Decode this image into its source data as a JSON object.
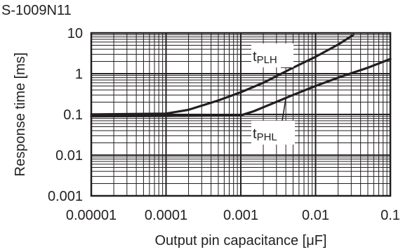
{
  "chart_data": {
    "type": "line",
    "title": "S-1009N11",
    "xlabel": "Output pin capacitance [μF]",
    "ylabel": "Response time [ms]",
    "xscale": "log",
    "yscale": "log",
    "xlim": [
      1e-05,
      0.1
    ],
    "ylim": [
      0.001,
      10
    ],
    "x_ticks": [
      "0.00001",
      "0.0001",
      "0.001",
      "0.01",
      "0.1"
    ],
    "y_ticks": [
      "0.001",
      "0.01",
      "0.1",
      "1",
      "10"
    ],
    "grid": true,
    "series": [
      {
        "name_main": "t",
        "name_sub": "PLH",
        "color": "#231f20",
        "x": [
          1e-05,
          0.0001,
          0.0002,
          0.0005,
          0.001,
          0.002,
          0.005,
          0.01,
          0.02,
          0.032
        ],
        "y": [
          0.1,
          0.105,
          0.13,
          0.22,
          0.35,
          0.6,
          1.4,
          2.6,
          5.2,
          9.0
        ]
      },
      {
        "name_main": "t",
        "name_sub": "PHL",
        "color": "#231f20",
        "x": [
          1e-05,
          0.0001,
          0.001,
          0.0015,
          0.002,
          0.005,
          0.01,
          0.02,
          0.05,
          0.1
        ],
        "y": [
          0.09,
          0.092,
          0.095,
          0.12,
          0.15,
          0.3,
          0.5,
          0.8,
          1.4,
          2.3
        ]
      }
    ]
  }
}
